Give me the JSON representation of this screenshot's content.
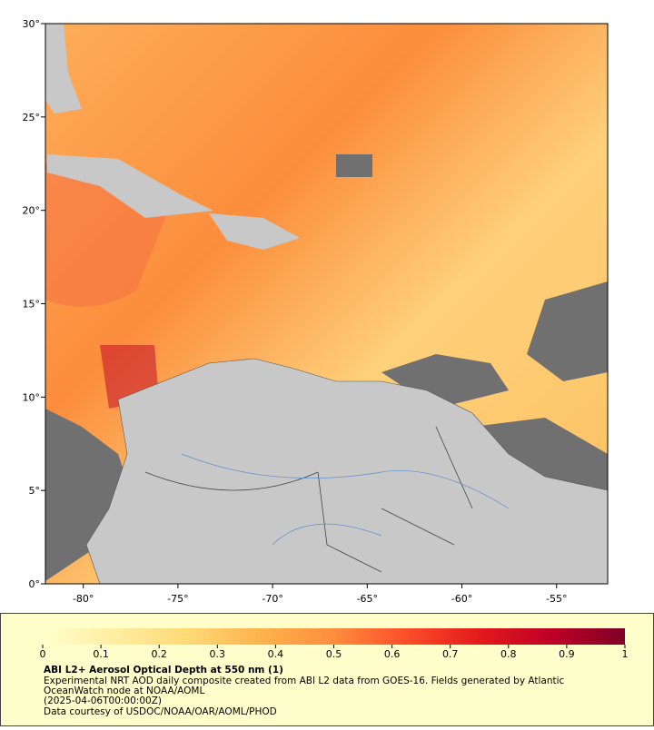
{
  "map": {
    "xlim": [
      -82,
      -52.3
    ],
    "ylim": [
      0,
      30
    ],
    "xticks": [
      {
        "value": -80,
        "label": "-80°"
      },
      {
        "value": -75,
        "label": "-75°"
      },
      {
        "value": -70,
        "label": "-70°"
      },
      {
        "value": -65,
        "label": "-65°"
      },
      {
        "value": -60,
        "label": "-60°"
      },
      {
        "value": -55,
        "label": "-55°"
      }
    ],
    "yticks": [
      {
        "value": 0,
        "label": "0°"
      },
      {
        "value": 5,
        "label": "5°"
      },
      {
        "value": 10,
        "label": "10°"
      },
      {
        "value": 15,
        "label": "15°"
      },
      {
        "value": 20,
        "label": "20°"
      },
      {
        "value": 25,
        "label": "25°"
      },
      {
        "value": 30,
        "label": "30°"
      }
    ]
  },
  "colorbar": {
    "lim": [
      0,
      1
    ],
    "ticks": [
      0,
      0.1,
      0.2,
      0.3,
      0.4,
      0.5,
      0.6,
      0.7,
      0.8,
      0.9,
      1
    ],
    "colors": [
      "#ffffcc",
      "#ffeda0",
      "#fed976",
      "#feb24c",
      "#fd8d3c",
      "#fc4e2a",
      "#e31a1c",
      "#bd0026",
      "#800026"
    ]
  },
  "caption": {
    "title": "ABI L2+ Aerosol Optical Depth at 550 nm (1)",
    "description_1": "Experimental NRT AOD daily composite created from ABI L2 data from GOES-16. Fields generated by Atlantic",
    "description_2": "OceanWatch node at NOAA/AOML",
    "time": "(2025-04-06T00:00:00Z)",
    "credit": "Data courtesy of USDOC/NOAA/OAR/AOML/PHOD"
  }
}
